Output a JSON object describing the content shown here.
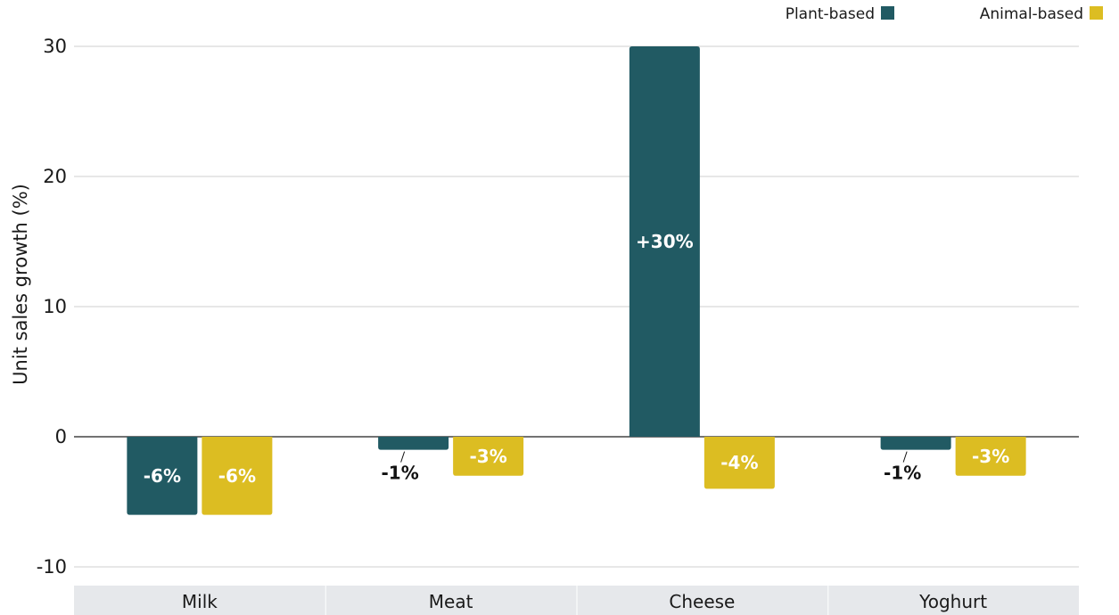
{
  "chart_data": {
    "type": "bar",
    "title": "",
    "xlabel": "",
    "ylabel": "Unit sales growth (%)",
    "categories": [
      "Milk",
      "Meat",
      "Cheese",
      "Yoghurt"
    ],
    "series": [
      {
        "name": "Plant-based",
        "color": "#215a63",
        "values": [
          -6,
          -1,
          30,
          -1
        ],
        "labels": [
          "-6%",
          "-1%",
          "+30%",
          "-1%"
        ]
      },
      {
        "name": "Animal-based",
        "color": "#dcbd22",
        "values": [
          -6,
          -3,
          -4,
          -3
        ],
        "labels": [
          "-6%",
          "-3%",
          "-4%",
          "-3%"
        ]
      }
    ],
    "ylim": [
      -10,
      30
    ],
    "yticks": [
      -10,
      0,
      10,
      20,
      30
    ],
    "ytick_labels": [
      "-10",
      "0",
      "10",
      "20",
      "30"
    ],
    "grid": true,
    "legend_position": "top-right"
  }
}
